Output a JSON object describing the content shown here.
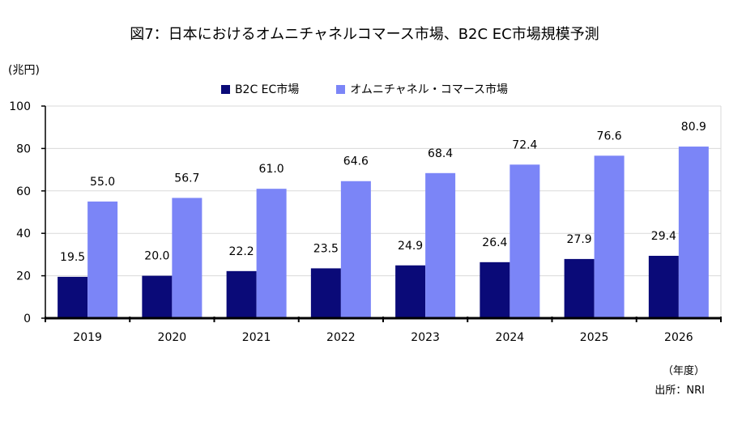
{
  "title": "図7：日本におけるオムニチャネルコマース市場、B2C EC市場規模予測",
  "unit_label": "(兆円)",
  "xaxis_unit": "（年度）",
  "source": "出所：NRI",
  "colors": {
    "b2c": "#0a0a78",
    "omni": "#7b85f7",
    "grid": "#d9d9d9",
    "axis": "#000000"
  },
  "chart_data": {
    "type": "bar",
    "title": "図7：日本におけるオムニチャネルコマース市場、B2C EC市場規模予測",
    "xlabel": "（年度）",
    "ylabel": "(兆円)",
    "ylim": [
      0,
      100
    ],
    "yticks": [
      0,
      20,
      40,
      60,
      80,
      100
    ],
    "grid": true,
    "legend": "top-center",
    "categories": [
      "2019",
      "2020",
      "2021",
      "2022",
      "2023",
      "2024",
      "2025",
      "2026"
    ],
    "series": [
      {
        "name": "B2C EC市場",
        "values": [
          19.5,
          20.0,
          22.2,
          23.5,
          24.9,
          26.4,
          27.9,
          29.4
        ]
      },
      {
        "name": "オムニチャネル・コマース市場",
        "values": [
          55.0,
          56.7,
          61.0,
          64.6,
          68.4,
          72.4,
          76.6,
          80.9
        ]
      }
    ]
  }
}
